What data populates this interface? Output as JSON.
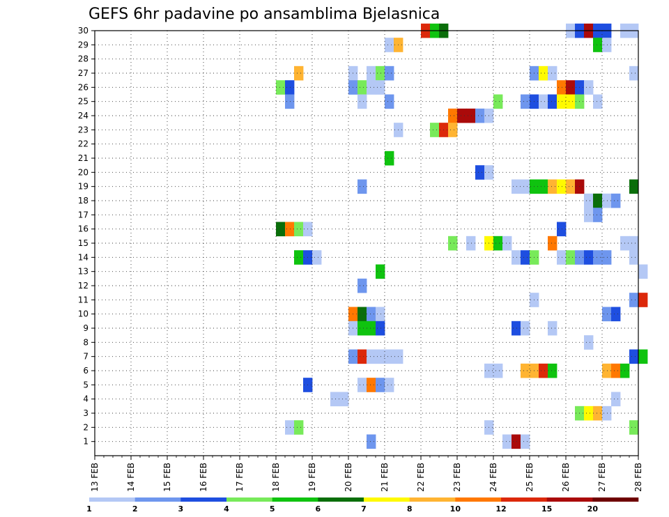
{
  "chart_data": {
    "type": "heatmap",
    "title": "GEFS 6hr padavine po ansamblima Bjelasnica",
    "xlabel": "",
    "ylabel": "",
    "x_ticks": [
      "13 FEB",
      "14 FEB",
      "15 FEB",
      "16 FEB",
      "17 FEB",
      "18 FEB",
      "19 FEB",
      "20 FEB",
      "21 FEB",
      "22 FEB",
      "23 FEB",
      "24 FEB",
      "25 FEB",
      "26 FEB",
      "27 FEB",
      "28 FEB"
    ],
    "xlim_days": [
      13,
      28
    ],
    "step_hours": 6,
    "y_ticks": [
      1,
      2,
      3,
      4,
      5,
      6,
      7,
      8,
      9,
      10,
      11,
      12,
      13,
      14,
      15,
      16,
      17,
      18,
      19,
      20,
      21,
      22,
      23,
      24,
      25,
      26,
      27,
      28,
      29,
      30
    ],
    "ylim": [
      0,
      30
    ],
    "grid": "dotted",
    "legend": {
      "placement": "bottom",
      "labels": [
        "1",
        "2",
        "3",
        "4",
        "5",
        "6",
        "7",
        "8",
        "10",
        "12",
        "15",
        "20"
      ],
      "colors": [
        "#b4c8f5",
        "#6e96ee",
        "#1e4ee0",
        "#78ea5a",
        "#0fc30f",
        "#0a6e0a",
        "#fffa00",
        "#ffb432",
        "#ff7800",
        "#dc280a",
        "#aa0a0a",
        "#6e0000"
      ]
    },
    "cells": [
      {
        "member": 30,
        "day": 22.0,
        "level": 10
      },
      {
        "member": 30,
        "day": 22.25,
        "level": 5
      },
      {
        "member": 30,
        "day": 22.5,
        "level": 6
      },
      {
        "member": 30,
        "day": 26.0,
        "level": 1
      },
      {
        "member": 30,
        "day": 26.25,
        "level": 3
      },
      {
        "member": 30,
        "day": 26.5,
        "level": 11
      },
      {
        "member": 30,
        "day": 26.75,
        "level": 3
      },
      {
        "member": 30,
        "day": 27.0,
        "level": 3
      },
      {
        "member": 30,
        "day": 27.5,
        "level": 1
      },
      {
        "member": 30,
        "day": 27.75,
        "level": 1
      },
      {
        "member": 29,
        "day": 21.0,
        "level": 1
      },
      {
        "member": 29,
        "day": 21.25,
        "level": 8
      },
      {
        "member": 29,
        "day": 26.75,
        "level": 5
      },
      {
        "member": 29,
        "day": 27.0,
        "level": 1
      },
      {
        "member": 27,
        "day": 18.5,
        "level": 8
      },
      {
        "member": 27,
        "day": 20.0,
        "level": 1
      },
      {
        "member": 27,
        "day": 20.5,
        "level": 1
      },
      {
        "member": 27,
        "day": 20.75,
        "level": 4
      },
      {
        "member": 27,
        "day": 21.0,
        "level": 2
      },
      {
        "member": 27,
        "day": 25.0,
        "level": 2
      },
      {
        "member": 27,
        "day": 25.25,
        "level": 7
      },
      {
        "member": 27,
        "day": 25.5,
        "level": 1
      },
      {
        "member": 27,
        "day": 27.75,
        "level": 1
      },
      {
        "member": 26,
        "day": 18.0,
        "level": 4
      },
      {
        "member": 26,
        "day": 18.25,
        "level": 3
      },
      {
        "member": 26,
        "day": 20.0,
        "level": 2
      },
      {
        "member": 26,
        "day": 20.25,
        "level": 4
      },
      {
        "member": 26,
        "day": 20.5,
        "level": 1
      },
      {
        "member": 26,
        "day": 20.75,
        "level": 1
      },
      {
        "member": 26,
        "day": 25.75,
        "level": 9
      },
      {
        "member": 26,
        "day": 26.0,
        "level": 11
      },
      {
        "member": 26,
        "day": 26.25,
        "level": 3
      },
      {
        "member": 26,
        "day": 26.5,
        "level": 1
      },
      {
        "member": 25,
        "day": 18.25,
        "level": 2
      },
      {
        "member": 25,
        "day": 20.25,
        "level": 1
      },
      {
        "member": 25,
        "day": 21.0,
        "level": 2
      },
      {
        "member": 25,
        "day": 24.0,
        "level": 4
      },
      {
        "member": 25,
        "day": 24.75,
        "level": 2
      },
      {
        "member": 25,
        "day": 25.0,
        "level": 3
      },
      {
        "member": 25,
        "day": 25.25,
        "level": 1
      },
      {
        "member": 25,
        "day": 25.5,
        "level": 3
      },
      {
        "member": 25,
        "day": 25.75,
        "level": 7
      },
      {
        "member": 25,
        "day": 26.0,
        "level": 7
      },
      {
        "member": 25,
        "day": 26.25,
        "level": 4
      },
      {
        "member": 25,
        "day": 26.75,
        "level": 1
      },
      {
        "member": 24,
        "day": 22.75,
        "level": 9
      },
      {
        "member": 24,
        "day": 23.0,
        "level": 11
      },
      {
        "member": 24,
        "day": 23.25,
        "level": 11
      },
      {
        "member": 24,
        "day": 23.5,
        "level": 2
      },
      {
        "member": 24,
        "day": 23.75,
        "level": 1
      },
      {
        "member": 23,
        "day": 21.25,
        "level": 1
      },
      {
        "member": 23,
        "day": 22.25,
        "level": 4
      },
      {
        "member": 23,
        "day": 22.5,
        "level": 10
      },
      {
        "member": 23,
        "day": 22.75,
        "level": 8
      },
      {
        "member": 21,
        "day": 21.0,
        "level": 5
      },
      {
        "member": 20,
        "day": 23.5,
        "level": 3
      },
      {
        "member": 20,
        "day": 23.75,
        "level": 1
      },
      {
        "member": 19,
        "day": 20.25,
        "level": 2
      },
      {
        "member": 19,
        "day": 24.5,
        "level": 1
      },
      {
        "member": 19,
        "day": 24.75,
        "level": 1
      },
      {
        "member": 19,
        "day": 25.0,
        "level": 5
      },
      {
        "member": 19,
        "day": 25.25,
        "level": 5
      },
      {
        "member": 19,
        "day": 25.5,
        "level": 8
      },
      {
        "member": 19,
        "day": 25.75,
        "level": 7
      },
      {
        "member": 19,
        "day": 26.0,
        "level": 8
      },
      {
        "member": 19,
        "day": 26.25,
        "level": 11
      },
      {
        "member": 19,
        "day": 27.75,
        "level": 6
      },
      {
        "member": 18,
        "day": 26.5,
        "level": 1
      },
      {
        "member": 18,
        "day": 26.75,
        "level": 6
      },
      {
        "member": 18,
        "day": 27.0,
        "level": 1
      },
      {
        "member": 18,
        "day": 27.25,
        "level": 2
      },
      {
        "member": 17,
        "day": 26.5,
        "level": 1
      },
      {
        "member": 17,
        "day": 26.75,
        "level": 2
      },
      {
        "member": 16,
        "day": 18.0,
        "level": 6
      },
      {
        "member": 16,
        "day": 18.25,
        "level": 9
      },
      {
        "member": 16,
        "day": 18.5,
        "level": 4
      },
      {
        "member": 16,
        "day": 18.75,
        "level": 1
      },
      {
        "member": 16,
        "day": 25.75,
        "level": 3
      },
      {
        "member": 15,
        "day": 22.75,
        "level": 4
      },
      {
        "member": 15,
        "day": 23.25,
        "level": 1
      },
      {
        "member": 15,
        "day": 23.75,
        "level": 7
      },
      {
        "member": 15,
        "day": 24.0,
        "level": 5
      },
      {
        "member": 15,
        "day": 24.25,
        "level": 1
      },
      {
        "member": 15,
        "day": 25.5,
        "level": 9
      },
      {
        "member": 15,
        "day": 27.5,
        "level": 1
      },
      {
        "member": 15,
        "day": 27.75,
        "level": 1
      },
      {
        "member": 14,
        "day": 18.5,
        "level": 5
      },
      {
        "member": 14,
        "day": 18.75,
        "level": 3
      },
      {
        "member": 14,
        "day": 19.0,
        "level": 1
      },
      {
        "member": 14,
        "day": 24.5,
        "level": 1
      },
      {
        "member": 14,
        "day": 24.75,
        "level": 3
      },
      {
        "member": 14,
        "day": 25.0,
        "level": 4
      },
      {
        "member": 14,
        "day": 25.75,
        "level": 1
      },
      {
        "member": 14,
        "day": 26.0,
        "level": 4
      },
      {
        "member": 14,
        "day": 26.25,
        "level": 2
      },
      {
        "member": 14,
        "day": 26.5,
        "level": 3
      },
      {
        "member": 14,
        "day": 26.75,
        "level": 2
      },
      {
        "member": 14,
        "day": 27.0,
        "level": 2
      },
      {
        "member": 14,
        "day": 27.75,
        "level": 1
      },
      {
        "member": 13,
        "day": 20.75,
        "level": 5
      },
      {
        "member": 13,
        "day": 28.0,
        "level": 1
      },
      {
        "member": 12,
        "day": 20.25,
        "level": 2
      },
      {
        "member": 11,
        "day": 25.0,
        "level": 1
      },
      {
        "member": 11,
        "day": 27.75,
        "level": 2
      },
      {
        "member": 11,
        "day": 28.0,
        "level": 10
      },
      {
        "member": 10,
        "day": 20.0,
        "level": 9
      },
      {
        "member": 10,
        "day": 20.25,
        "level": 6
      },
      {
        "member": 10,
        "day": 20.5,
        "level": 2
      },
      {
        "member": 10,
        "day": 20.75,
        "level": 1
      },
      {
        "member": 10,
        "day": 27.0,
        "level": 2
      },
      {
        "member": 10,
        "day": 27.25,
        "level": 3
      },
      {
        "member": 9,
        "day": 20.0,
        "level": 1
      },
      {
        "member": 9,
        "day": 20.25,
        "level": 5
      },
      {
        "member": 9,
        "day": 20.5,
        "level": 5
      },
      {
        "member": 9,
        "day": 20.75,
        "level": 3
      },
      {
        "member": 9,
        "day": 24.5,
        "level": 3
      },
      {
        "member": 9,
        "day": 24.75,
        "level": 1
      },
      {
        "member": 9,
        "day": 25.5,
        "level": 1
      },
      {
        "member": 8,
        "day": 26.5,
        "level": 1
      },
      {
        "member": 7,
        "day": 20.0,
        "level": 2
      },
      {
        "member": 7,
        "day": 20.25,
        "level": 10
      },
      {
        "member": 7,
        "day": 20.5,
        "level": 1
      },
      {
        "member": 7,
        "day": 20.75,
        "level": 1
      },
      {
        "member": 7,
        "day": 21.0,
        "level": 1
      },
      {
        "member": 7,
        "day": 21.25,
        "level": 1
      },
      {
        "member": 7,
        "day": 27.75,
        "level": 3
      },
      {
        "member": 7,
        "day": 28.0,
        "level": 5
      },
      {
        "member": 6,
        "day": 23.75,
        "level": 1
      },
      {
        "member": 6,
        "day": 24.0,
        "level": 1
      },
      {
        "member": 6,
        "day": 24.75,
        "level": 8
      },
      {
        "member": 6,
        "day": 25.0,
        "level": 8
      },
      {
        "member": 6,
        "day": 25.25,
        "level": 10
      },
      {
        "member": 6,
        "day": 25.5,
        "level": 5
      },
      {
        "member": 6,
        "day": 27.0,
        "level": 8
      },
      {
        "member": 6,
        "day": 27.25,
        "level": 9
      },
      {
        "member": 6,
        "day": 27.5,
        "level": 5
      },
      {
        "member": 5,
        "day": 18.75,
        "level": 3
      },
      {
        "member": 5,
        "day": 20.25,
        "level": 1
      },
      {
        "member": 5,
        "day": 20.5,
        "level": 9
      },
      {
        "member": 5,
        "day": 20.75,
        "level": 2
      },
      {
        "member": 5,
        "day": 21.0,
        "level": 1
      },
      {
        "member": 4,
        "day": 19.5,
        "level": 1
      },
      {
        "member": 4,
        "day": 19.75,
        "level": 1
      },
      {
        "member": 4,
        "day": 27.25,
        "level": 1
      },
      {
        "member": 3,
        "day": 26.25,
        "level": 4
      },
      {
        "member": 3,
        "day": 26.5,
        "level": 7
      },
      {
        "member": 3,
        "day": 26.75,
        "level": 8
      },
      {
        "member": 3,
        "day": 27.0,
        "level": 1
      },
      {
        "member": 2,
        "day": 18.25,
        "level": 1
      },
      {
        "member": 2,
        "day": 18.5,
        "level": 4
      },
      {
        "member": 2,
        "day": 23.75,
        "level": 1
      },
      {
        "member": 2,
        "day": 27.75,
        "level": 4
      },
      {
        "member": 1,
        "day": 20.5,
        "level": 2
      },
      {
        "member": 1,
        "day": 24.25,
        "level": 1
      },
      {
        "member": 1,
        "day": 24.5,
        "level": 11
      },
      {
        "member": 1,
        "day": 24.75,
        "level": 1
      }
    ]
  }
}
